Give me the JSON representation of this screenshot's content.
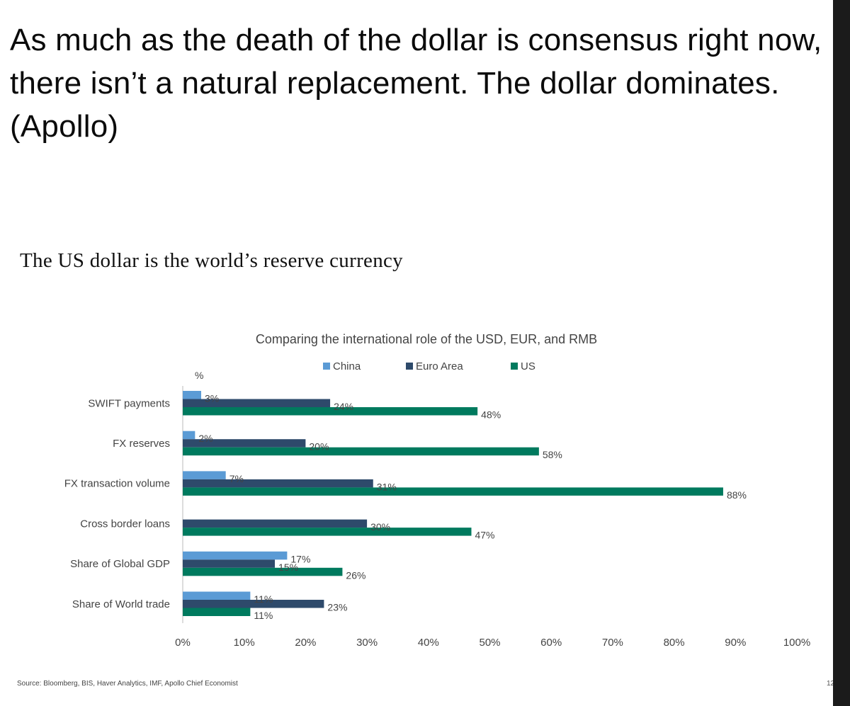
{
  "headline": "As much as the death of the dollar is consensus right now, there isn’t a natural replacement. The dollar dominates. (Apollo)",
  "slide_title": "The US dollar is the world’s reserve currency",
  "source": "Source: Bloomberg, BIS, Haver Analytics, IMF, Apollo Chief Economist",
  "page_number": "12",
  "colors": {
    "China": "#5b9bd5",
    "Euro Area": "#2e4a6b",
    "US": "#007a5e"
  },
  "chart_data": {
    "type": "bar",
    "orientation": "horizontal",
    "title": "Comparing the international role of the USD, EUR, and RMB",
    "unit_label": "%",
    "categories": [
      "SWIFT payments",
      "FX reserves",
      "FX transaction volume",
      "Cross border loans",
      "Share of Global GDP",
      "Share of World trade"
    ],
    "series": [
      {
        "name": "China",
        "values": [
          3,
          2,
          7,
          null,
          17,
          11
        ],
        "labels": [
          "3%",
          "2%",
          "7%",
          null,
          "17%",
          "11%"
        ]
      },
      {
        "name": "Euro Area",
        "values": [
          24,
          20,
          31,
          30,
          15,
          23
        ],
        "labels": [
          "24%",
          "20%",
          "31%",
          "30%",
          "15%",
          "23%"
        ]
      },
      {
        "name": "US",
        "values": [
          48,
          58,
          88,
          47,
          26,
          11
        ],
        "labels": [
          "48%",
          "58%",
          "88%",
          "47%",
          "26%",
          "11%"
        ]
      }
    ],
    "xlim": [
      0,
      100
    ],
    "xticks": [
      0,
      10,
      20,
      30,
      40,
      50,
      60,
      70,
      80,
      90,
      100
    ],
    "xtick_labels": [
      "0%",
      "10%",
      "20%",
      "30%",
      "40%",
      "50%",
      "60%",
      "70%",
      "80%",
      "90%",
      "100%"
    ],
    "legend": [
      "China",
      "Euro Area",
      "US"
    ],
    "legend_position": "top"
  }
}
